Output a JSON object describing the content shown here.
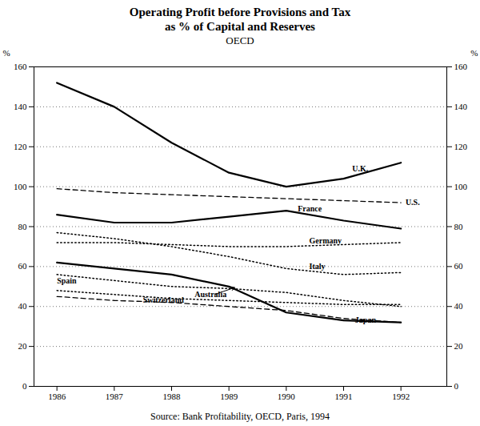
{
  "chart_data": {
    "type": "line",
    "title": "Operating Profit before Provisions and Tax\nas % of Capital and Reserves",
    "subtitle": "OECD",
    "source": "Source: Bank Profitability, OECD, Paris, 1994",
    "ylabel": "%",
    "y2label": "%",
    "x": [
      1986,
      1987,
      1988,
      1989,
      1990,
      1991,
      1992
    ],
    "xlim": [
      1985.6,
      1992.8
    ],
    "xticks": [
      1986,
      1987,
      1988,
      1989,
      1990,
      1991,
      1992
    ],
    "ylim": [
      0,
      160
    ],
    "yticks": [
      0,
      20,
      40,
      60,
      80,
      100,
      120,
      140,
      160
    ],
    "y2lim": [
      0,
      160
    ],
    "y2ticks": [
      0,
      20,
      40,
      60,
      80,
      100,
      120,
      140,
      160
    ],
    "grid": true,
    "series": [
      {
        "name": "U.K.",
        "color": "#000000",
        "line_style": "solid",
        "values": [
          152,
          140,
          122,
          107,
          100,
          104,
          112
        ],
        "label": {
          "x": 1991.15,
          "y": 109
        }
      },
      {
        "name": "U.S.",
        "color": "#000000",
        "line_style": "dashed",
        "values": [
          99,
          97,
          96,
          95,
          94,
          93,
          92
        ],
        "label": {
          "x": 1992.08,
          "y": 92
        }
      },
      {
        "name": "France",
        "color": "#000000",
        "line_style": "solid",
        "values": [
          86,
          82,
          82,
          85,
          88,
          83,
          79
        ],
        "label": {
          "x": 1990.2,
          "y": 89
        }
      },
      {
        "name": "Germany",
        "color": "#000000",
        "line_style": "dotted",
        "values": [
          72,
          72,
          71,
          70,
          70,
          71,
          72
        ],
        "label": {
          "x": 1990.4,
          "y": 73
        }
      },
      {
        "name": "Italy",
        "color": "#000000",
        "line_style": "dotted",
        "values": [
          77,
          74,
          70,
          65,
          59,
          56,
          57
        ],
        "label": {
          "x": 1990.4,
          "y": 60
        }
      },
      {
        "name": "Spain",
        "color": "#000000",
        "line_style": "dotted",
        "values": [
          56,
          53,
          50,
          49,
          47,
          43,
          40
        ],
        "label": {
          "x": 1986.0,
          "y": 53
        }
      },
      {
        "name": "Switzerland",
        "color": "#000000",
        "line_style": "dotted",
        "values": [
          48,
          46,
          44,
          43,
          42,
          41,
          41
        ],
        "label": {
          "x": 1987.5,
          "y": 43
        }
      },
      {
        "name": "Australia",
        "color": "#000000",
        "line_style": "solid",
        "values": [
          62,
          59,
          56,
          50,
          37,
          33,
          32
        ],
        "label": {
          "x": 1988.4,
          "y": 46
        },
        "arrow": {
          "from": [
            1988.75,
            46
          ],
          "to": [
            1989.1,
            49.5
          ]
        }
      },
      {
        "name": "Japan",
        "color": "#000000",
        "line_style": "dashed",
        "values": [
          45,
          43,
          42,
          40,
          38,
          34,
          32
        ],
        "label": {
          "x": 1991.2,
          "y": 33
        }
      }
    ]
  }
}
